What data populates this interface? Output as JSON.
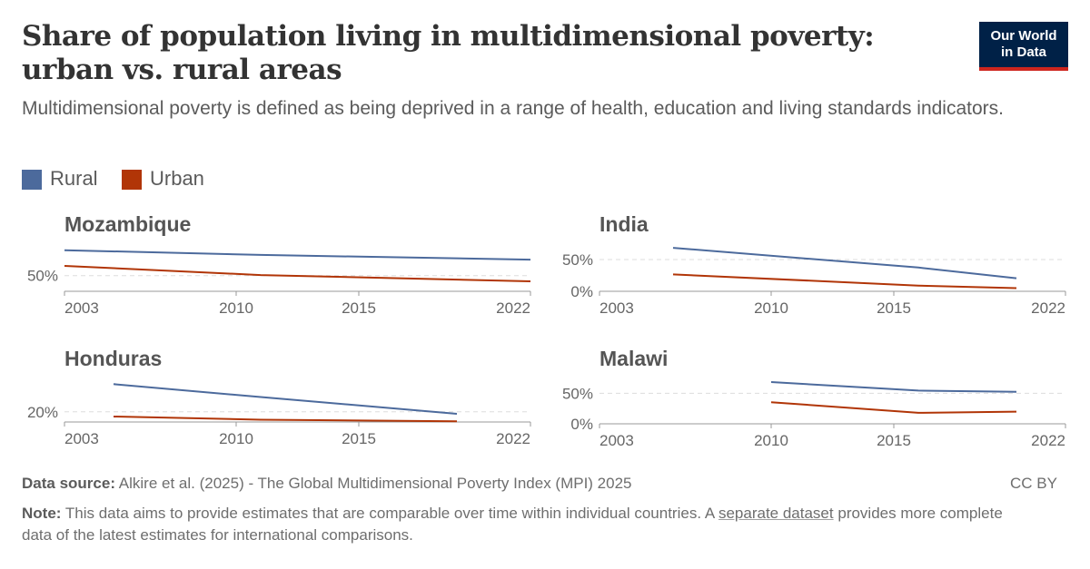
{
  "header": {
    "title": "Share of population living in multidimensional poverty: urban vs. rural areas",
    "subtitle": "Multidimensional poverty is defined as being deprived in a range of health, education and living standards indicators.",
    "logo_line1": "Our World",
    "logo_line2": "in Data"
  },
  "legend": [
    {
      "label": "Rural",
      "color": "#4c6a9c"
    },
    {
      "label": "Urban",
      "color": "#b13507"
    }
  ],
  "footer": {
    "source_label": "Data source:",
    "source_text": "Alkire et al. (2025) - The Global Multidimensional Poverty Index (MPI) 2025",
    "license": "CC BY",
    "note_label": "Note:",
    "note_text": "This data aims to provide estimates that are comparable over time within individual countries. A",
    "note_link": "separate dataset",
    "note_text2": "provides more complete data of the latest estimates for international comparisons."
  },
  "chart_data": [
    {
      "type": "line",
      "title": "Mozambique",
      "xlim": [
        2003,
        2022
      ],
      "x_ticks": [
        "2003",
        "2010",
        "2015",
        "2022"
      ],
      "y_ticks": [
        {
          "value": 50,
          "label": "50%"
        }
      ],
      "ylim": [
        44,
        61
      ],
      "series": [
        {
          "name": "Rural",
          "x": [
            2003,
            2011,
            2022
          ],
          "y": [
            59.7,
            57.9,
            56.1
          ]
        },
        {
          "name": "Urban",
          "x": [
            2003,
            2011,
            2022
          ],
          "y": [
            53.7,
            50.2,
            47.8
          ]
        }
      ]
    },
    {
      "type": "line",
      "title": "India",
      "xlim": [
        2003,
        2022
      ],
      "x_ticks": [
        "2003",
        "2010",
        "2015",
        "2022"
      ],
      "y_ticks": [
        {
          "value": 0,
          "label": "0%"
        },
        {
          "value": 50,
          "label": "50%"
        }
      ],
      "ylim": [
        0,
        70
      ],
      "series": [
        {
          "name": "Rural",
          "x": [
            2006,
            2016,
            2020
          ],
          "y": [
            68.5,
            37.5,
            20.5
          ]
        },
        {
          "name": "Urban",
          "x": [
            2006,
            2016,
            2020
          ],
          "y": [
            26.5,
            9.0,
            5.0
          ]
        }
      ]
    },
    {
      "type": "line",
      "title": "Honduras",
      "xlim": [
        2003,
        2022
      ],
      "x_ticks": [
        "2003",
        "2010",
        "2015",
        "2022"
      ],
      "y_ticks": [
        {
          "value": 20,
          "label": "20%"
        }
      ],
      "ylim": [
        15.5,
        33.5
      ],
      "series": [
        {
          "name": "Rural",
          "x": [
            2005,
            2011,
            2019
          ],
          "y": [
            32.2,
            26.5,
            19.1
          ]
        },
        {
          "name": "Urban",
          "x": [
            2005,
            2011,
            2019
          ],
          "y": [
            17.9,
            16.5,
            15.8
          ]
        }
      ]
    },
    {
      "type": "line",
      "title": "Malawi",
      "xlim": [
        2003,
        2022
      ],
      "x_ticks": [
        "2003",
        "2010",
        "2015",
        "2022"
      ],
      "y_ticks": [
        {
          "value": 0,
          "label": "0%"
        },
        {
          "value": 50,
          "label": "50%"
        }
      ],
      "ylim": [
        0,
        70
      ],
      "series": [
        {
          "name": "Rural",
          "x": [
            2010,
            2016,
            2020
          ],
          "y": [
            68.5,
            54.5,
            52.5
          ]
        },
        {
          "name": "Urban",
          "x": [
            2010,
            2016,
            2020
          ],
          "y": [
            35.5,
            18.0,
            20.0
          ]
        }
      ]
    }
  ]
}
